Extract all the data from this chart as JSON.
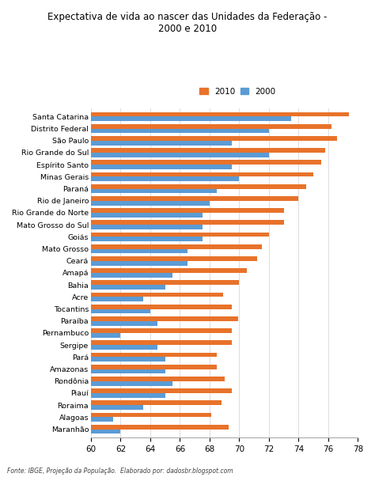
{
  "title": "Expectativa de vida ao nascer das Unidades da Federação -\n2000 e 2010",
  "states": [
    "Santa Catarina",
    "Distrito Federal",
    "São Paulo",
    "Rio Grande do Sul",
    "Espírito Santo",
    "Minas Gerais",
    "Paraná",
    "Rio de Janeiro",
    "Rio Grande do Norte",
    "Mato Grosso do Sul",
    "Goiás",
    "Mato Grosso",
    "Ceará",
    "Amapá",
    "Bahia",
    "Acre",
    "Tocantins",
    "Paraíba",
    "Pernambuco",
    "Sergipe",
    "Pará",
    "Amazonas",
    "Rondônia",
    "Piauí",
    "Roraima",
    "Alagoas",
    "Maranhão"
  ],
  "values_2010": [
    77.4,
    76.2,
    76.6,
    75.8,
    75.5,
    75.0,
    74.5,
    74.0,
    73.0,
    73.0,
    72.0,
    71.5,
    71.2,
    70.5,
    70.0,
    68.9,
    69.5,
    69.9,
    69.5,
    69.5,
    68.5,
    68.5,
    69.0,
    69.5,
    68.8,
    68.1,
    69.3
  ],
  "values_2000": [
    73.5,
    72.0,
    69.5,
    72.0,
    69.5,
    70.0,
    68.5,
    68.0,
    67.5,
    67.5,
    67.5,
    66.5,
    66.5,
    65.5,
    65.0,
    63.5,
    64.0,
    64.5,
    62.0,
    64.5,
    65.0,
    65.0,
    65.5,
    65.0,
    63.5,
    61.5,
    62.0
  ],
  "color_2010": "#E8722A",
  "color_2000": "#5B9BD5",
  "xlim": [
    60,
    78
  ],
  "xticks": [
    60,
    62,
    64,
    66,
    68,
    70,
    72,
    74,
    76,
    78
  ],
  "footer": "Fonte: IBGE, Projeção da População.  Elaborado por: dadosbr.blogspot.com",
  "bg_color": "#FFFFFF"
}
